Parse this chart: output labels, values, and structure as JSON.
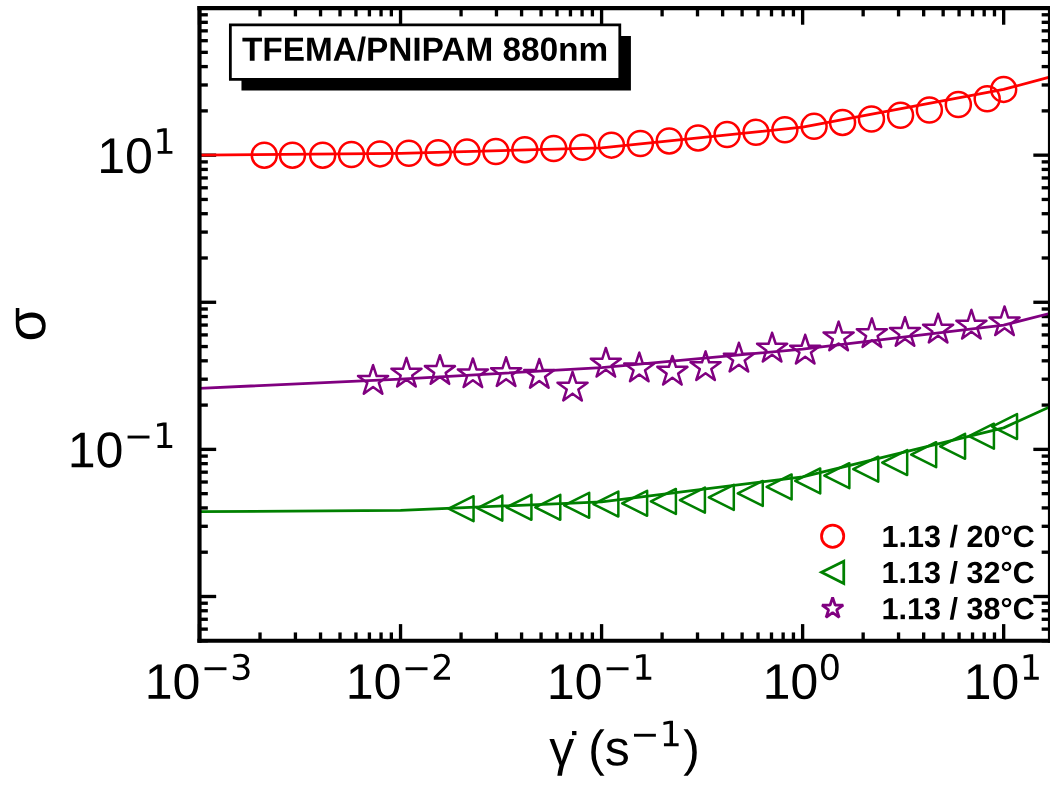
{
  "chart_data": {
    "type": "scatter",
    "title": "TFEMA/PNIPAM 880nm",
    "xlabel": "γ̇ (s$^{−1}$)",
    "ylabel": "σ",
    "log": "xy",
    "legend": "bottom right",
    "grid": false,
    "xlim": [
      0.001,
      17
    ],
    "ylim": [
      0.005,
      100
    ],
    "xticks": [
      {
        "value": 0.001,
        "label": "10$^{−3}$"
      },
      {
        "value": 0.01,
        "label": "10$^{−2}$"
      },
      {
        "value": 0.1,
        "label": "10$^{−1}$"
      },
      {
        "value": 1,
        "label": "10$^{0}$"
      },
      {
        "value": 10,
        "label": "10$^{1}$"
      }
    ],
    "yticks": [
      {
        "value": 0.01,
        "label": null
      },
      {
        "value": 0.1,
        "label": "10$^{−1}$"
      },
      {
        "value": 1,
        "label": null
      },
      {
        "value": 10,
        "label": "10$^{1}$"
      }
    ],
    "series": [
      {
        "name": "1.13 / 20°C",
        "color": "#ff0000",
        "marker": "circle",
        "x": [
          0.0021,
          0.0029,
          0.0041,
          0.0057,
          0.0079,
          0.011,
          0.0154,
          0.0214,
          0.0298,
          0.0415,
          0.0578,
          0.0805,
          0.112,
          0.156,
          0.217,
          0.302,
          0.421,
          0.586,
          0.816,
          1.14,
          1.58,
          2.2,
          3.07,
          4.27,
          5.95,
          8.28,
          10.0
        ],
        "values": [
          10.0,
          10.0,
          10.0,
          10.1,
          10.2,
          10.3,
          10.4,
          10.5,
          10.6,
          10.9,
          11.1,
          11.3,
          11.7,
          12.0,
          12.5,
          13.1,
          13.8,
          14.3,
          14.9,
          15.7,
          16.7,
          17.6,
          18.7,
          20.3,
          22.1,
          24.2,
          28.0
        ]
      },
      {
        "name": "1.13 / 32°C",
        "color": "#008000",
        "marker": "triangle_left",
        "x": [
          0.02,
          0.0278,
          0.0388,
          0.054,
          0.0752,
          0.105,
          0.146,
          0.203,
          0.283,
          0.394,
          0.549,
          0.764,
          1.06,
          1.48,
          2.06,
          2.87,
          4.0,
          5.57,
          7.75,
          10.1
        ],
        "values": [
          0.0395,
          0.0399,
          0.0404,
          0.0404,
          0.0417,
          0.0425,
          0.043,
          0.0443,
          0.0452,
          0.0472,
          0.0502,
          0.0556,
          0.061,
          0.0662,
          0.0734,
          0.0814,
          0.0921,
          0.105,
          0.123,
          0.143
        ]
      },
      {
        "name": "1.13 / 38°C",
        "color": "#800080",
        "marker": "star",
        "x": [
          0.0073,
          0.0107,
          0.0157,
          0.0229,
          0.0335,
          0.049,
          0.0717,
          0.105,
          0.154,
          0.225,
          0.329,
          0.482,
          0.705,
          1.03,
          1.51,
          2.21,
          3.23,
          4.72,
          6.91,
          10.1
        ],
        "values": [
          0.292,
          0.327,
          0.341,
          0.324,
          0.33,
          0.321,
          0.263,
          0.382,
          0.355,
          0.337,
          0.362,
          0.414,
          0.484,
          0.469,
          0.577,
          0.607,
          0.619,
          0.652,
          0.693,
          0.731
        ]
      },
      {
        "type": "line",
        "color": "#ff0000",
        "x": [
          0.001,
          0.01,
          0.1,
          1,
          10,
          17
        ],
        "values": [
          10.0,
          10.3,
          11.2,
          15.5,
          28,
          34
        ]
      },
      {
        "type": "line",
        "color": "#008000",
        "x": [
          0.001,
          0.01,
          0.1,
          1,
          10,
          17
        ],
        "values": [
          0.0377,
          0.0385,
          0.044,
          0.065,
          0.14,
          0.195
        ]
      },
      {
        "type": "line",
        "color": "#800080",
        "x": [
          0.001,
          0.01,
          0.1,
          1,
          10,
          17
        ],
        "values": [
          0.26,
          0.3,
          0.36,
          0.48,
          0.7,
          0.84
        ]
      }
    ]
  }
}
